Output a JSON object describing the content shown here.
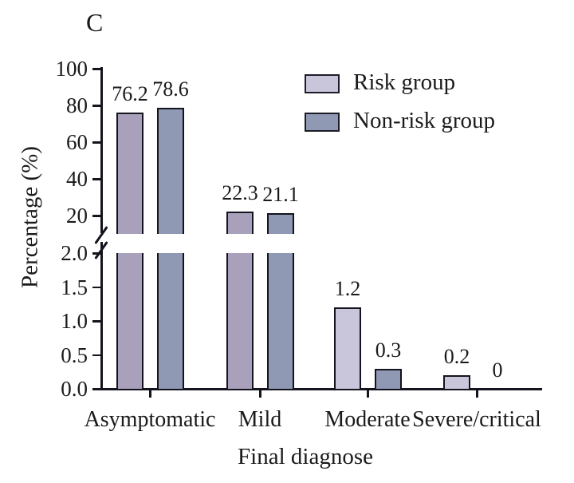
{
  "figure": {
    "panel_label": "C",
    "background": "#ffffff"
  },
  "chart_data": {
    "type": "bar",
    "title": "",
    "xlabel": "Final diagnose",
    "ylabel": "Percentage (%)",
    "categories": [
      "Asymptomatic",
      "Mild",
      "Moderate",
      "Severe/critical"
    ],
    "series": [
      {
        "name": "Risk group",
        "values": [
          76.2,
          22.3,
          1.2,
          0.2
        ],
        "labels": [
          "76.2",
          "22.3",
          "1.2",
          "0.2"
        ],
        "color": "#c9c6db",
        "color_tall_bars": "#a9a1bb"
      },
      {
        "name": "Non-risk group",
        "values": [
          78.6,
          21.1,
          0.3,
          0
        ],
        "labels": [
          "78.6",
          "21.1",
          "0.3",
          "0"
        ],
        "color": "#8f99b3",
        "color_tall_bars": "#8f99b3"
      }
    ],
    "axis_break": {
      "upper_axis": {
        "min": 10,
        "max": 100,
        "ticks": [
          100,
          80,
          60,
          40,
          20
        ]
      },
      "lower_axis": {
        "min": 0,
        "max": 2,
        "tick_labels": [
          "2.0",
          "1.5",
          "1.0",
          "0.5",
          "0.0"
        ]
      }
    },
    "grid": false,
    "legend_position": "top-right"
  },
  "legend": {
    "items": [
      {
        "label": "Risk group",
        "color": "#c9c6db"
      },
      {
        "label": "Non-risk group",
        "color": "#8f99b3"
      }
    ]
  },
  "colors": {
    "bar_border": "#14141e",
    "axis": "#14141e",
    "text": "#1a1a1a",
    "background": "#ffffff"
  }
}
